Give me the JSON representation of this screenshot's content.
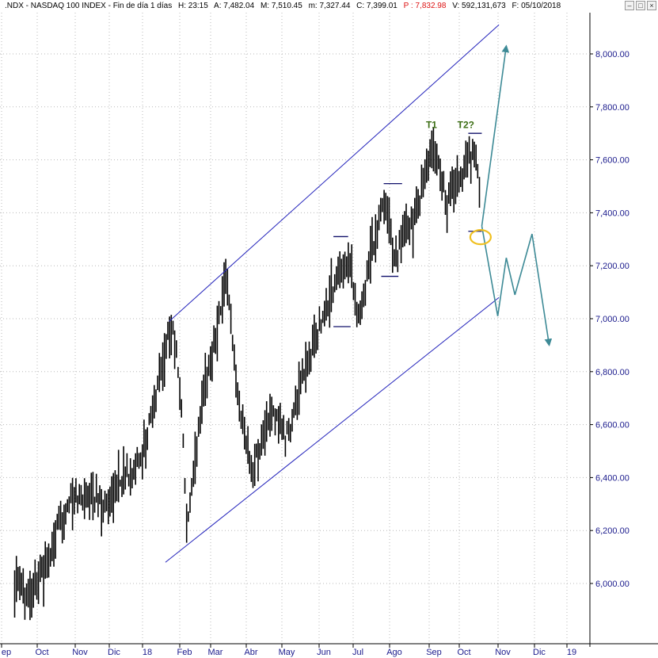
{
  "header": {
    "name": ".NDX - NASDAQ 100 INDEX - Fin de día 1 días",
    "h": "H: 23:15",
    "a": "A: 7,482.04",
    "m": "M: 7,510.45",
    "m_low": "m: 7,327.44",
    "c": "C: 7,399.01",
    "p": "P : 7,832.98",
    "v": "V: 592,131,673",
    "f": "F: 05/10/2018"
  },
  "window_buttons": [
    "minimize-icon",
    "maximize-icon",
    "close-icon"
  ],
  "colors": {
    "channel": "#2222bb",
    "projection": "#3d8a96",
    "annotation": "#3c6e14",
    "highlight": "#f0c020",
    "axis_text": "#1a1a8c",
    "grid": "#b8b8b8",
    "candle": "#000000"
  },
  "chart_data": {
    "type": "line",
    "title": "",
    "ylim": [
      5850,
      8150
    ],
    "y_ticks": [
      6000,
      6200,
      6400,
      6600,
      6800,
      7000,
      7200,
      7400,
      7600,
      7800,
      8000
    ],
    "y_tick_labels": [
      "6,000.00",
      "6,200.00",
      "6,400.00",
      "6,600.00",
      "6,800.00",
      "7,000.00",
      "7,200.00",
      "7,400.00",
      "7,600.00",
      "7,800.00",
      "8,000.00"
    ],
    "x_tick_labels": [
      "ep",
      "Oct",
      "Nov",
      "Dic",
      "18",
      "Feb",
      "Mar",
      "Abr",
      "May",
      "Jun",
      "Jul",
      "Ago",
      "Sep",
      "Oct",
      "Nov",
      "Dic",
      "19"
    ],
    "grid": true,
    "y_axis_side": "right",
    "price_series": {
      "name": "",
      "x": [
        "2017-09-20",
        "2017-10-01",
        "2017-10-15",
        "2017-11-01",
        "2017-11-20",
        "2017-12-01",
        "2017-12-15",
        "2018-01-01",
        "2018-01-15",
        "2018-01-26",
        "2018-02-02",
        "2018-02-08",
        "2018-02-20",
        "2018-03-01",
        "2018-03-12",
        "2018-03-23",
        "2018-04-02",
        "2018-04-18",
        "2018-05-01",
        "2018-05-15",
        "2018-06-01",
        "2018-06-20",
        "2018-06-28",
        "2018-07-05",
        "2018-07-18",
        "2018-07-27",
        "2018-08-10",
        "2018-08-28",
        "2018-09-07",
        "2018-09-20",
        "2018-10-01",
        "2018-10-05"
      ],
      "y": [
        6000,
        5960,
        6050,
        6300,
        6350,
        6280,
        6400,
        6450,
        6750,
        7000,
        6750,
        6200,
        6700,
        6900,
        7150,
        6600,
        6450,
        6650,
        6550,
        6800,
        7050,
        7250,
        6980,
        7200,
        7450,
        7250,
        7350,
        7650,
        7450,
        7550,
        7650,
        7399.01
      ]
    },
    "channel": {
      "upper": {
        "x": [
          "2018-01-24",
          "2018-10-20"
        ],
        "y": [
          6990,
          8110
        ]
      },
      "lower": {
        "x": [
          "2018-01-21",
          "2018-10-20"
        ],
        "y": [
          6080,
          7080
        ]
      }
    },
    "levels": [
      {
        "x": [
          "2018-09-25",
          "2018-10-06"
        ],
        "y": 7700
      },
      {
        "x": [
          "2018-09-25",
          "2018-10-06"
        ],
        "y": 7330
      },
      {
        "x": [
          "2018-07-18",
          "2018-08-02"
        ],
        "y": 7510
      },
      {
        "x": [
          "2018-07-16",
          "2018-07-30"
        ],
        "y": 7160
      },
      {
        "x": [
          "2018-06-07",
          "2018-06-19"
        ],
        "y": 7310
      },
      {
        "x": [
          "2018-06-07",
          "2018-06-21"
        ],
        "y": 6970
      }
    ],
    "projections": [
      {
        "x": [
          "2018-10-06",
          "2018-10-26"
        ],
        "y": [
          7350,
          8030
        ]
      },
      {
        "x": [
          "2018-10-06",
          "2018-10-19",
          "2018-10-26",
          "2018-11-02",
          "2018-11-16",
          "2018-11-30"
        ],
        "y": [
          7350,
          7010,
          7230,
          7090,
          7320,
          6900
        ]
      }
    ],
    "annotations": [
      {
        "text": "T1",
        "x": "2018-08-26",
        "y": 7720
      },
      {
        "text": "T2?",
        "x": "2018-09-23",
        "y": 7720
      }
    ],
    "highlight": {
      "x": "2018-10-05",
      "y": 7320
    }
  }
}
